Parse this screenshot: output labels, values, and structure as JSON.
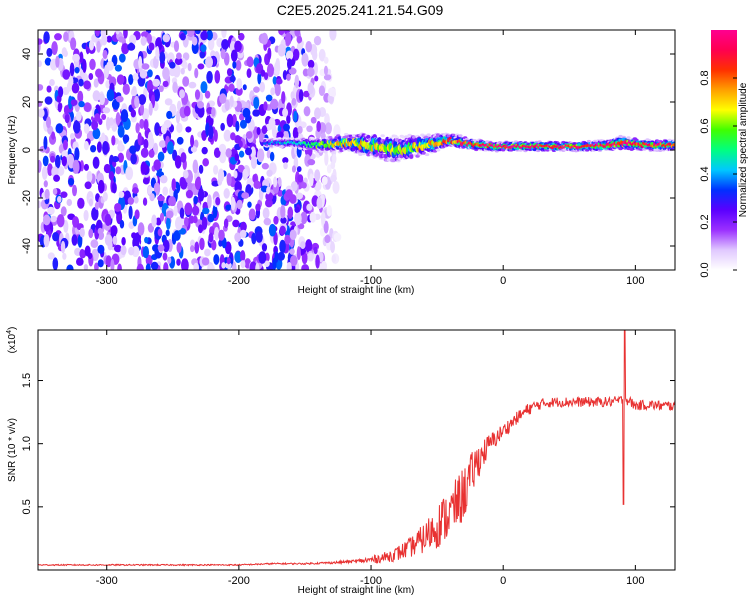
{
  "title": "C2E5.2025.241.21.54.G09",
  "chart_data": [
    {
      "type": "heatmap",
      "xlabel": "Height of straight line (km)",
      "ylabel": "Frequency (Hz)",
      "xlim": [
        -352,
        130
      ],
      "ylim": [
        -50,
        50
      ],
      "xticks": [
        -300,
        -200,
        -100,
        0,
        100
      ],
      "yticks": [
        -40,
        -20,
        0,
        20,
        40
      ],
      "colorbar": {
        "label": "Normalized spectral amplitude",
        "range": [
          0,
          1
        ],
        "ticks": [
          0.0,
          0.2,
          0.4,
          0.6,
          0.8
        ],
        "colormap": [
          "#ffffff",
          "#e0c8ff",
          "#9b30ff",
          "#5a00ff",
          "#0030ff",
          "#00c8ff",
          "#00ff80",
          "#40ff00",
          "#ffff00",
          "#ffa000",
          "#ff3000",
          "#ff0050",
          "#ff0090"
        ]
      },
      "noise_region_x": [
        -352,
        -135
      ],
      "ridge": [
        {
          "x": -180,
          "f": 3,
          "amp": 0.35,
          "w": 1.2
        },
        {
          "x": -160,
          "f": 3,
          "amp": 0.45,
          "w": 1.2
        },
        {
          "x": -140,
          "f": 2,
          "amp": 0.55,
          "w": 2.0
        },
        {
          "x": -120,
          "f": 3,
          "amp": 0.7,
          "w": 2.5
        },
        {
          "x": -100,
          "f": 2,
          "amp": 0.65,
          "w": 3.5
        },
        {
          "x": -80,
          "f": 0,
          "amp": 0.6,
          "w": 4.0
        },
        {
          "x": -60,
          "f": 2,
          "amp": 0.7,
          "w": 3.0
        },
        {
          "x": -40,
          "f": 4,
          "amp": 0.8,
          "w": 2.0
        },
        {
          "x": -20,
          "f": 2,
          "amp": 0.9,
          "w": 1.5
        },
        {
          "x": 0,
          "f": 1.5,
          "amp": 0.95,
          "w": 1.3
        },
        {
          "x": 20,
          "f": 1.5,
          "amp": 1.0,
          "w": 1.3
        },
        {
          "x": 40,
          "f": 1.5,
          "amp": 0.95,
          "w": 1.3
        },
        {
          "x": 60,
          "f": 1.5,
          "amp": 0.9,
          "w": 1.3
        },
        {
          "x": 80,
          "f": 2,
          "amp": 0.9,
          "w": 1.5
        },
        {
          "x": 90,
          "f": 3,
          "amp": 0.95,
          "w": 2.0
        },
        {
          "x": 110,
          "f": 2,
          "amp": 0.9,
          "w": 1.5
        },
        {
          "x": 130,
          "f": 2,
          "amp": 0.8,
          "w": 1.5
        }
      ]
    },
    {
      "type": "line",
      "xlabel": "Height of straight line (km)",
      "ylabel": "SNR (10 * v/v)",
      "y_multiplier_label": "(x10",
      "y_multiplier_exp": "4",
      "y_multiplier_close": ")",
      "xlim": [
        -352,
        130
      ],
      "ylim": [
        0,
        1.9
      ],
      "xticks": [
        -300,
        -200,
        -100,
        0,
        100
      ],
      "yticks": [
        0.5,
        1.0,
        1.5
      ],
      "color": "#e83232",
      "series": [
        {
          "x": [
            -352,
            -300,
            -250,
            -200,
            -175,
            -150,
            -125,
            -110,
            -100,
            -90,
            -80,
            -70,
            -60,
            -50,
            -40,
            -30,
            -20,
            -10,
            0,
            10,
            20,
            30,
            40,
            50,
            60,
            70,
            80,
            88,
            92,
            95,
            100,
            110,
            120,
            130
          ],
          "y": [
            0.04,
            0.04,
            0.04,
            0.04,
            0.05,
            0.05,
            0.06,
            0.07,
            0.08,
            0.1,
            0.13,
            0.18,
            0.25,
            0.35,
            0.45,
            0.6,
            0.85,
            1.0,
            1.1,
            1.2,
            1.28,
            1.32,
            1.33,
            1.33,
            1.33,
            1.33,
            1.33,
            1.34,
            1.35,
            1.34,
            1.3,
            1.31,
            1.3,
            1.3
          ],
          "spread": [
            0.005,
            0.005,
            0.005,
            0.005,
            0.006,
            0.006,
            0.01,
            0.015,
            0.03,
            0.04,
            0.06,
            0.08,
            0.12,
            0.18,
            0.2,
            0.22,
            0.15,
            0.08,
            0.06,
            0.05,
            0.05,
            0.04,
            0.04,
            0.04,
            0.04,
            0.04,
            0.04,
            0.04,
            0.04,
            0.04,
            0.04,
            0.04,
            0.04,
            0.04
          ]
        }
      ],
      "spike": {
        "x": 92,
        "peak": 1.95,
        "trough": 0.52
      }
    }
  ]
}
